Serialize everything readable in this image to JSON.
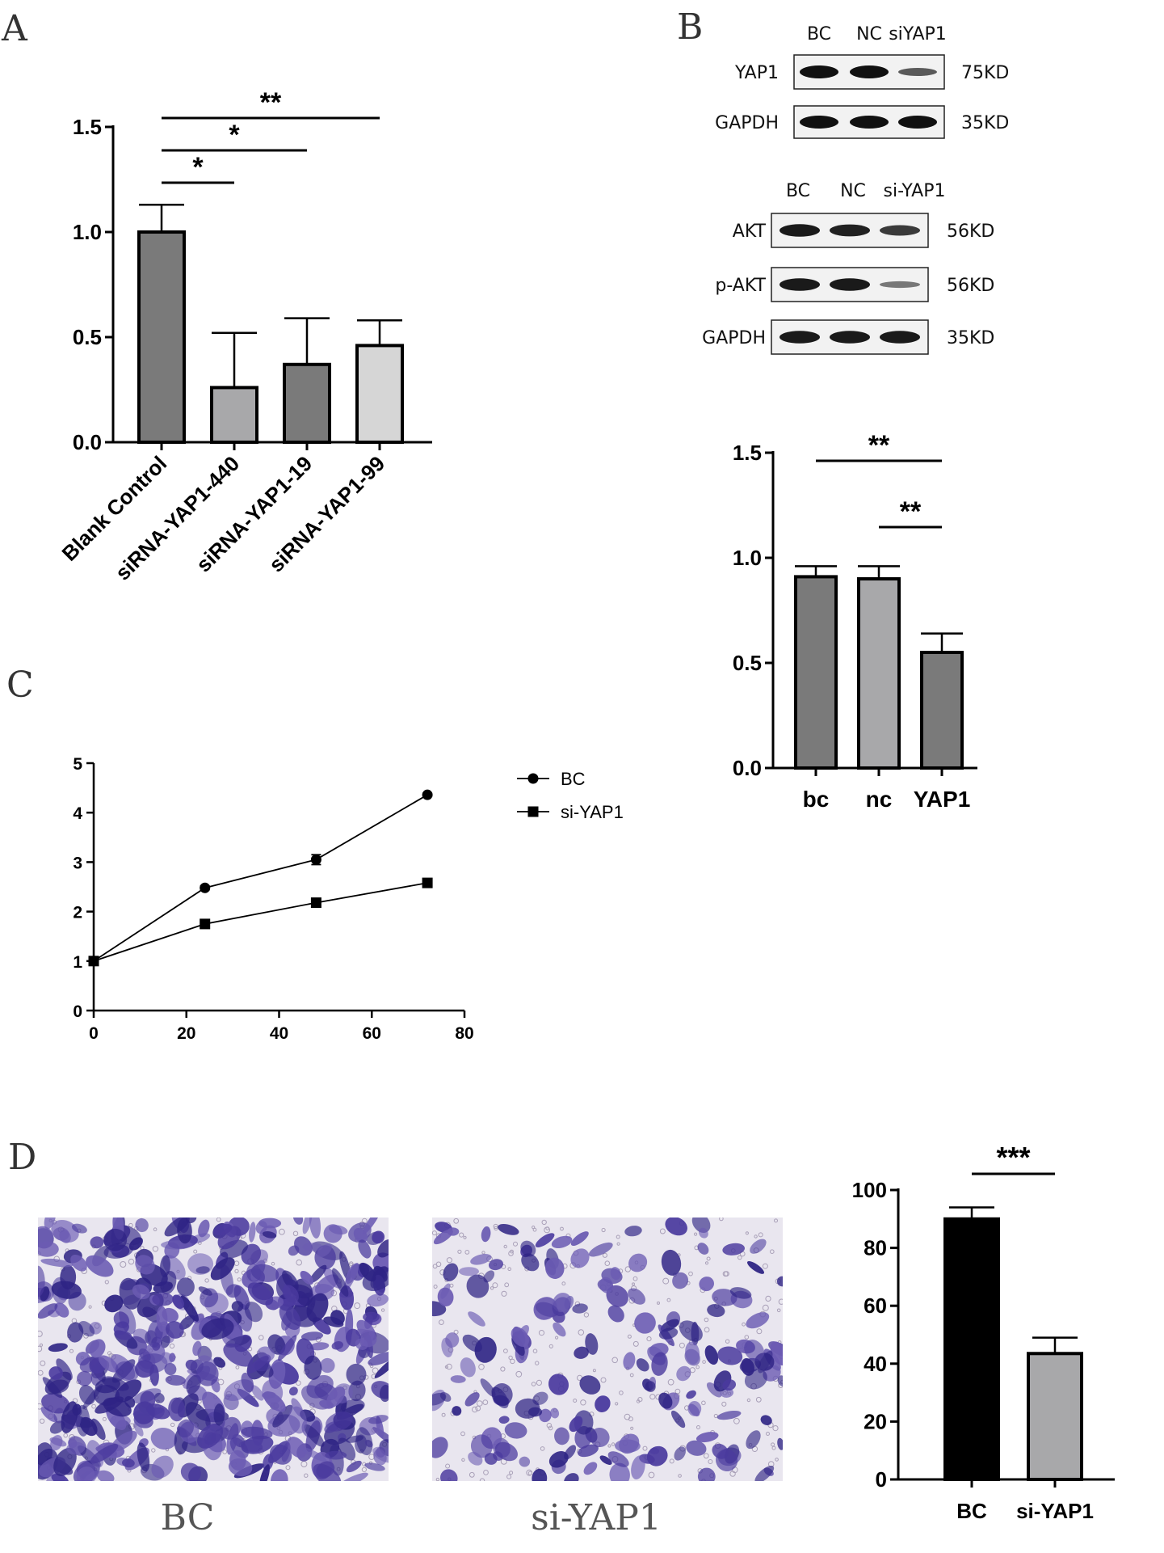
{
  "panels": {
    "A": "A",
    "B": "B",
    "C": "C",
    "D": "D"
  },
  "colors": {
    "dark_bar": "#7a7a7a",
    "mid_bar": "#a8a8aa",
    "light_bar": "#d6d6d6",
    "black_bar": "#000000",
    "stain_purple": "#3a2d8f",
    "micro_bg": "#e9e6ef"
  },
  "chart_data": [
    {
      "id": "A",
      "type": "bar",
      "title": "",
      "xlabel": "",
      "ylabel": "",
      "categories": [
        "Blank Control",
        "siRNA-YAP1-440",
        "siRNA-YAP1-19",
        "siRNA-YAP1-99"
      ],
      "values": [
        1.0,
        0.26,
        0.37,
        0.46
      ],
      "errors": [
        0.13,
        0.26,
        0.22,
        0.12
      ],
      "bar_colors": [
        "#7a7a7a",
        "#a8a8aa",
        "#7a7a7a",
        "#d6d6d6"
      ],
      "ylim": [
        0,
        1.5
      ],
      "yticks": [
        "0.0",
        "0.5",
        "1.0",
        "1.5"
      ],
      "significance": [
        {
          "from": 0,
          "to": 1,
          "label": "*"
        },
        {
          "from": 0,
          "to": 2,
          "label": "*"
        },
        {
          "from": 0,
          "to": 3,
          "label": "**"
        }
      ]
    },
    {
      "id": "B",
      "type": "bar",
      "title": "",
      "xlabel": "",
      "ylabel": "",
      "categories": [
        "bc",
        "nc",
        "YAP1"
      ],
      "values": [
        0.91,
        0.9,
        0.55
      ],
      "errors": [
        0.05,
        0.06,
        0.09
      ],
      "bar_colors": [
        "#7a7a7a",
        "#a8a8aa",
        "#7a7a7a"
      ],
      "ylim": [
        0,
        1.5
      ],
      "yticks": [
        "0.0",
        "0.5",
        "1.0",
        "1.5"
      ],
      "significance": [
        {
          "from": 0,
          "to": 2,
          "label": "**"
        },
        {
          "from": 1,
          "to": 2,
          "label": "**"
        }
      ]
    },
    {
      "id": "C",
      "type": "line",
      "title": "",
      "xlabel": "",
      "ylabel": "",
      "x": [
        0,
        24,
        48,
        72
      ],
      "xlim": [
        0,
        80
      ],
      "ylim": [
        0,
        5
      ],
      "xticks": [
        "0",
        "20",
        "40",
        "60",
        "80"
      ],
      "yticks": [
        "0",
        "1",
        "2",
        "3",
        "4",
        "5"
      ],
      "legend_position": "right",
      "series": [
        {
          "name": "BC",
          "marker": "circle",
          "values": [
            1.0,
            2.48,
            3.05,
            4.36
          ],
          "errors": [
            0,
            0.04,
            0.1,
            0.03
          ]
        },
        {
          "name": "si-YAP1",
          "marker": "square",
          "values": [
            1.0,
            1.75,
            2.18,
            2.58
          ],
          "errors": [
            0,
            0.03,
            0.03,
            0.03
          ]
        }
      ]
    },
    {
      "id": "D",
      "type": "bar",
      "title": "",
      "xlabel": "",
      "ylabel": "",
      "categories": [
        "BC",
        "si-YAP1"
      ],
      "values": [
        90,
        43.5
      ],
      "errors": [
        4,
        5.5
      ],
      "bar_colors": [
        "#000000",
        "#a8a8aa"
      ],
      "ylim": [
        0,
        100
      ],
      "yticks": [
        "0",
        "20",
        "40",
        "60",
        "80",
        "100"
      ],
      "significance": [
        {
          "from": 0,
          "to": 1,
          "label": "***"
        }
      ]
    }
  ],
  "blots": {
    "group1": {
      "lanes": [
        "BC",
        "NC",
        "siYAP1"
      ],
      "rows": [
        {
          "label": "YAP1",
          "size": "75KD",
          "intensity": [
            1.0,
            1.0,
            0.5
          ]
        },
        {
          "label": "GAPDH",
          "size": "35KD",
          "intensity": [
            1.0,
            1.0,
            1.0
          ]
        }
      ]
    },
    "group2": {
      "lanes": [
        "BC",
        "NC",
        "si-YAP1"
      ],
      "rows": [
        {
          "label": "AKT",
          "size": "56KD",
          "intensity": [
            0.95,
            0.9,
            0.75
          ]
        },
        {
          "label": "p-AKT",
          "size": "56KD",
          "intensity": [
            0.95,
            0.95,
            0.35
          ]
        },
        {
          "label": "GAPDH",
          "size": "35KD",
          "intensity": [
            0.95,
            0.95,
            0.95
          ]
        }
      ]
    }
  },
  "micrographs": [
    {
      "caption": "BC",
      "density": 0.85
    },
    {
      "caption": "si-YAP1",
      "density": 0.35
    }
  ]
}
